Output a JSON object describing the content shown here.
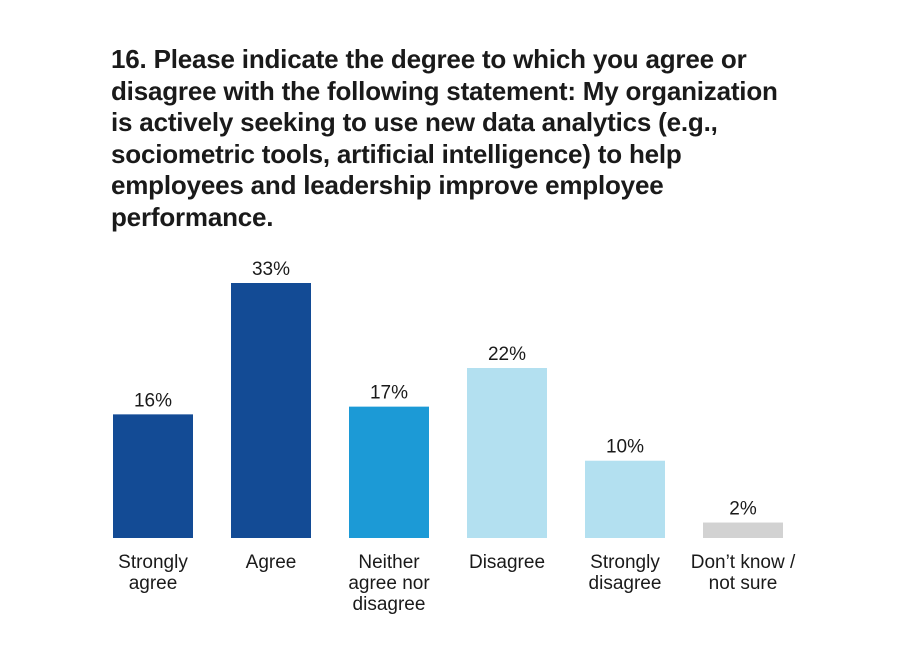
{
  "chart_data": {
    "type": "bar",
    "title": "16. Please indicate the degree to which you agree or disagree with the following statement: My organization is actively seeking to use new data analytics (e.g., sociometric tools, artificial intelligence) to help employees and leadership improve employee performance.",
    "title_lines": [
      "16. Please indicate the degree to which you agree or",
      "disagree with the following statement: My organization",
      "is actively seeking to use new data analytics (e.g.,",
      "sociometric tools, artificial intelligence) to help",
      "employees and leadership improve employee",
      "performance."
    ],
    "categories": [
      "Strongly agree",
      "Agree",
      "Neither agree nor disagree",
      "Disagree",
      "Strongly disagree",
      "Don’t know / not sure"
    ],
    "category_label_lines": [
      [
        "Strongly",
        "agree"
      ],
      [
        "Agree"
      ],
      [
        "Neither",
        "agree nor",
        "disagree"
      ],
      [
        "Disagree"
      ],
      [
        "Strongly",
        "disagree"
      ],
      [
        "Don’t know /",
        "not sure"
      ]
    ],
    "values": [
      16,
      33,
      17,
      22,
      10,
      2
    ],
    "value_labels": [
      "16%",
      "33%",
      "17%",
      "22%",
      "10%",
      "2%"
    ],
    "colors": [
      "#134b95",
      "#134b95",
      "#1c9ad6",
      "#b3e0f0",
      "#b3e0f0",
      "#d2d2d2"
    ],
    "ylim": [
      0,
      33
    ],
    "xlabel": "",
    "ylabel": "",
    "grid": false,
    "legend": "none"
  }
}
